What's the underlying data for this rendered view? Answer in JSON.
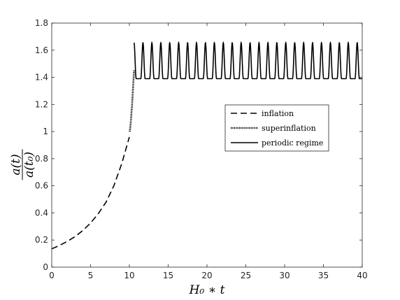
{
  "chart_data": {
    "type": "line",
    "xlabel": "H₀ ∗ t",
    "ylabel_numerator": "a(t)",
    "ylabel_denominator": "a(t₀)",
    "xlim": [
      0,
      40
    ],
    "ylim": [
      0,
      1.8
    ],
    "x_ticks": [
      0,
      5,
      10,
      15,
      20,
      25,
      30,
      35,
      40
    ],
    "y_ticks": [
      0,
      0.2,
      0.4,
      0.6,
      0.8,
      1,
      1.2,
      1.4,
      1.6,
      1.8
    ],
    "x_tick_labels": [
      "0",
      "5",
      "10",
      "15",
      "20",
      "25",
      "30",
      "35",
      "40"
    ],
    "y_tick_labels": [
      "0",
      "0.2",
      "0.4",
      "0.6",
      "0.8",
      "1",
      "1.2",
      "1.4",
      "1.6",
      "1.8"
    ],
    "grid": false,
    "legend_position": "middle-right",
    "series": [
      {
        "name": "inflation",
        "style": "dashed",
        "color": "#000000",
        "points": [
          [
            0,
            0.135
          ],
          [
            1,
            0.16
          ],
          [
            2,
            0.19
          ],
          [
            3,
            0.225
          ],
          [
            4,
            0.27
          ],
          [
            5,
            0.325
          ],
          [
            6,
            0.395
          ],
          [
            7,
            0.48
          ],
          [
            8,
            0.6
          ],
          [
            9,
            0.76
          ],
          [
            10,
            0.96
          ]
        ]
      },
      {
        "name": "superinflation",
        "style": "dotted",
        "color": "#000000",
        "points": [
          [
            10.05,
            1.0
          ],
          [
            10.15,
            1.05
          ],
          [
            10.25,
            1.12
          ],
          [
            10.35,
            1.2
          ],
          [
            10.45,
            1.3
          ],
          [
            10.55,
            1.4
          ],
          [
            10.6,
            1.45
          ]
        ]
      },
      {
        "name": "periodic regime",
        "style": "solid",
        "color": "#000000",
        "x_start": 10.6,
        "x_end": 40,
        "y_min": 1.39,
        "y_max": 1.655,
        "period": 1.15
      }
    ]
  }
}
